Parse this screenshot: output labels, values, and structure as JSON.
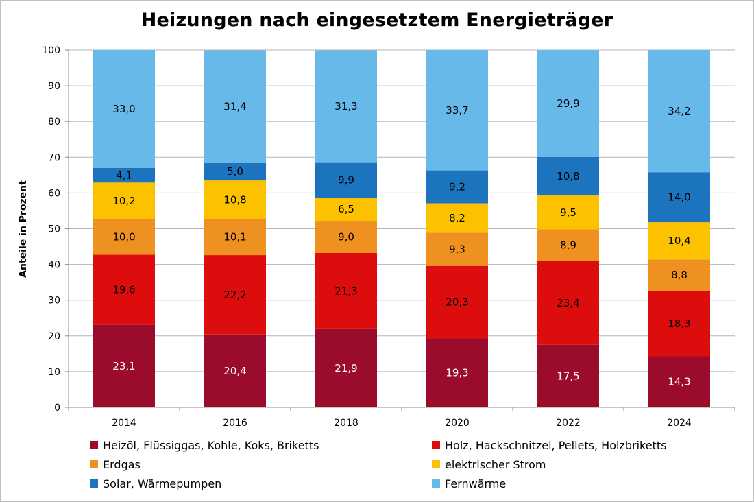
{
  "chart_data": {
    "type": "bar",
    "stacked": true,
    "title": "Heizungen nach eingesetztem Energieträger",
    "xlabel": "",
    "ylabel": "Anteile in Prozent",
    "ylim": [
      0,
      100
    ],
    "yticks": [
      "0",
      "10",
      "20",
      "30",
      "40",
      "50",
      "60",
      "70",
      "80",
      "90",
      "100"
    ],
    "grid": true,
    "legend_position": "bottom",
    "categories": [
      "2014",
      "2016",
      "2018",
      "2020",
      "2022",
      "2024"
    ],
    "series": [
      {
        "name": "Heizöl, Flüssiggas, Kohle, Koks, Briketts",
        "color": "#9b0b2b",
        "label_color": "#ffffff",
        "values": [
          23.1,
          20.4,
          21.9,
          19.3,
          17.5,
          14.3
        ],
        "labels": [
          "23,1",
          "20,4",
          "21,9",
          "19,3",
          "17,5",
          "14,3"
        ]
      },
      {
        "name": "Holz, Hackschnitzel, Pellets, Holzbriketts",
        "color": "#dd0d0d",
        "label_color": "#000000",
        "values": [
          19.6,
          22.2,
          21.3,
          20.3,
          23.4,
          18.3
        ],
        "labels": [
          "19,6",
          "22,2",
          "21,3",
          "20,3",
          "23,4",
          "18,3"
        ]
      },
      {
        "name": "Erdgas",
        "color": "#ef9120",
        "label_color": "#000000",
        "values": [
          10.0,
          10.1,
          9.0,
          9.3,
          8.9,
          8.8
        ],
        "labels": [
          "10,0",
          "10,1",
          "9,0",
          "9,3",
          "8,9",
          "8,8"
        ]
      },
      {
        "name": "elektrischer Strom",
        "color": "#fcc200",
        "label_color": "#000000",
        "values": [
          10.2,
          10.8,
          6.5,
          8.2,
          9.5,
          10.4
        ],
        "labels": [
          "10,2",
          "10,8",
          "6,5",
          "8,2",
          "9,5",
          "10,4"
        ]
      },
      {
        "name": "Solar, Wärmepumpen",
        "color": "#1d74be",
        "label_color": "#000000",
        "values": [
          4.1,
          5.0,
          9.9,
          9.2,
          10.8,
          14.0
        ],
        "labels": [
          "4,1",
          "5,0",
          "9,9",
          "9,2",
          "10,8",
          "14,0"
        ]
      },
      {
        "name": "Fernwärme",
        "color": "#67b9e9",
        "label_color": "#000000",
        "values": [
          33.0,
          31.4,
          31.3,
          33.7,
          29.9,
          34.2
        ],
        "labels": [
          "33,0",
          "31,4",
          "31,3",
          "33,7",
          "29,9",
          "34,2"
        ]
      }
    ]
  }
}
